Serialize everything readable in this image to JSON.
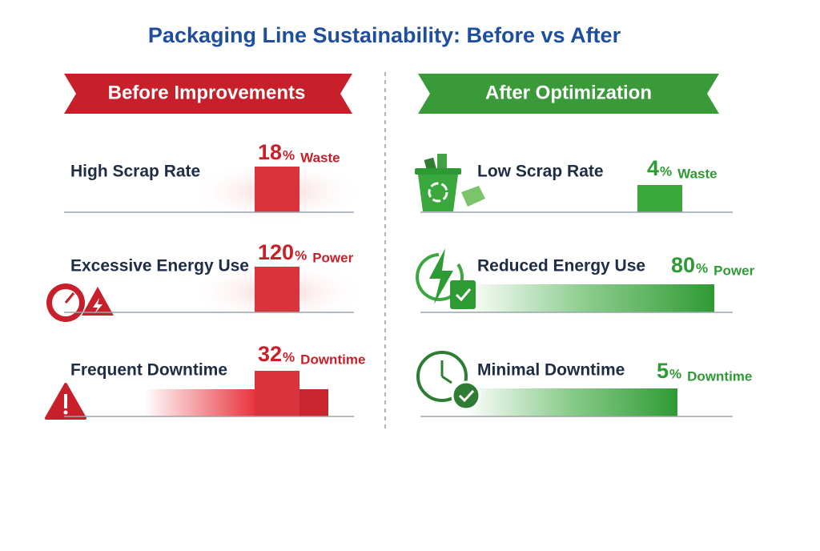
{
  "title": "Packaging Line Sustainability: Before vs After",
  "panels": [
    {
      "heading": "Before Improvements",
      "items": [
        {
          "label": "High Scrap Rate",
          "value": 18,
          "unit": "%",
          "measure": "Waste"
        },
        {
          "label": "Excessive Energy Use",
          "value": 120,
          "unit": "%",
          "measure": "Power"
        },
        {
          "label": "Frequent Downtime",
          "value": 32,
          "unit": "%",
          "measure": "Downtime"
        }
      ]
    },
    {
      "heading": "After Optimization",
      "items": [
        {
          "label": "Low Scrap Rate",
          "value": 4,
          "unit": "%",
          "measure": "Waste"
        },
        {
          "label": "Reduced Energy Use",
          "value": 80,
          "unit": "%",
          "measure": "Power"
        },
        {
          "label": "Minimal Downtime",
          "value": 5,
          "unit": "%",
          "measure": "Downtime"
        }
      ]
    }
  ]
}
